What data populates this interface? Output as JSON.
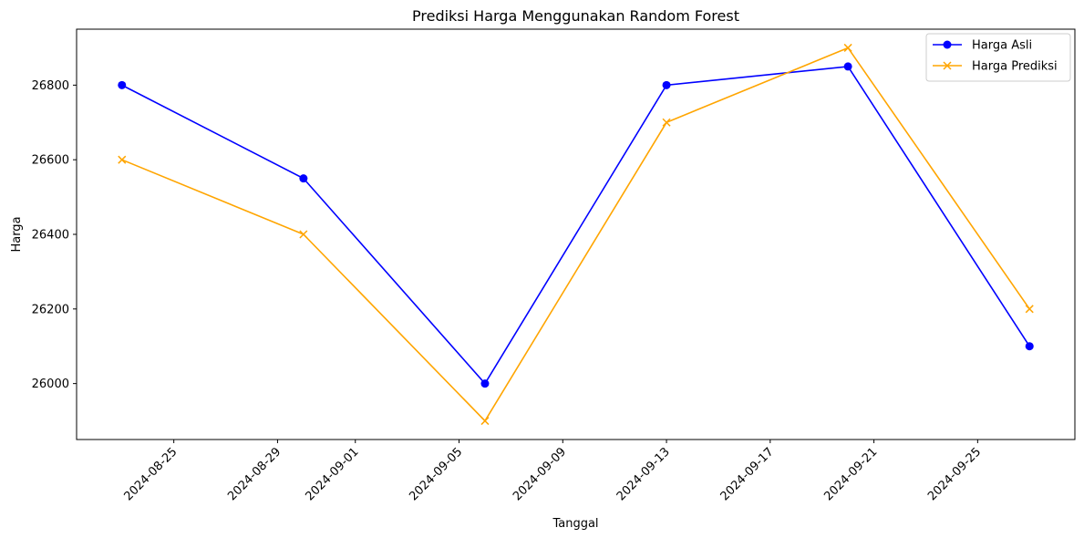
{
  "chart_data": {
    "type": "line",
    "title": "Prediksi Harga Menggunakan Random Forest",
    "xlabel": "Tanggal",
    "ylabel": "Harga",
    "x": [
      "2024-08-23",
      "2024-08-30",
      "2024-09-06",
      "2024-09-13",
      "2024-09-20",
      "2024-09-27"
    ],
    "x_day_offsets": [
      0,
      7,
      14,
      21,
      28,
      35
    ],
    "xlim_day_offsets": [
      -1.75,
      36.75
    ],
    "xticks": [
      {
        "label": "2024-08-25",
        "day": 2
      },
      {
        "label": "2024-08-29",
        "day": 6
      },
      {
        "label": "2024-09-01",
        "day": 9
      },
      {
        "label": "2024-09-05",
        "day": 13
      },
      {
        "label": "2024-09-09",
        "day": 17
      },
      {
        "label": "2024-09-13",
        "day": 21
      },
      {
        "label": "2024-09-17",
        "day": 25
      },
      {
        "label": "2024-09-21",
        "day": 29
      },
      {
        "label": "2024-09-25",
        "day": 33
      }
    ],
    "ylim": [
      25850,
      26950
    ],
    "yticks": [
      26000,
      26200,
      26400,
      26600,
      26800
    ],
    "grid": false,
    "legend_position": "top-right",
    "series": [
      {
        "name": "Harga Asli",
        "color": "#0000ff",
        "marker": "circle",
        "values": [
          26800,
          26550,
          26000,
          26800,
          26850,
          26100
        ]
      },
      {
        "name": "Harga Prediksi",
        "color": "#ffa500",
        "marker": "x",
        "values": [
          26600,
          26400,
          25900,
          26700,
          26900,
          26200
        ]
      }
    ]
  }
}
